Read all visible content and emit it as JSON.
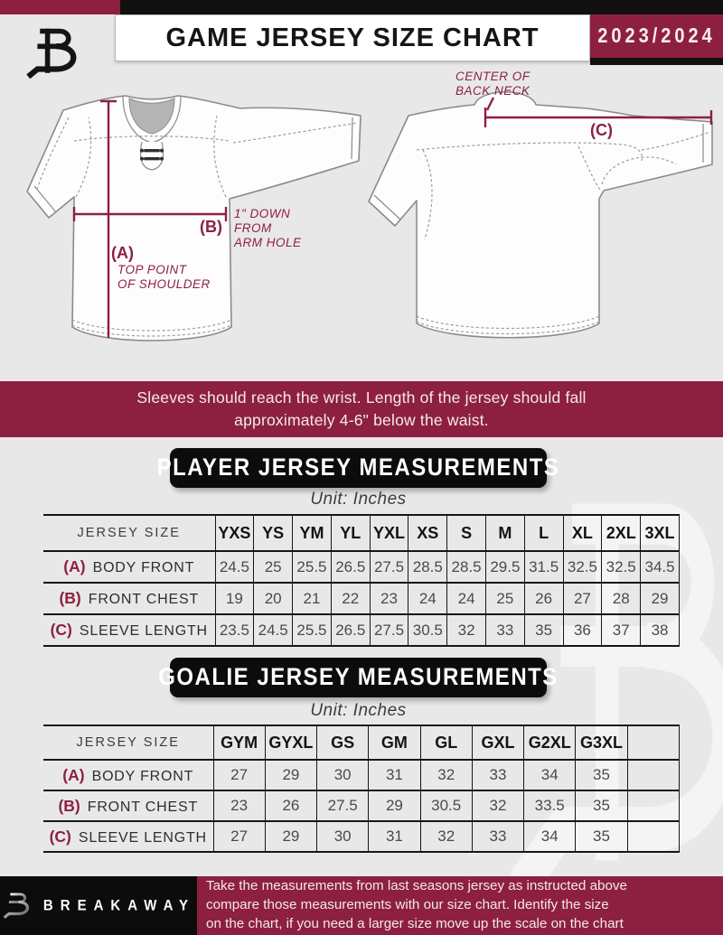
{
  "header": {
    "title": "GAME JERSEY SIZE CHART",
    "season": "2023/2024"
  },
  "icons": {
    "brand_logo": "breakaway-b-monogram"
  },
  "diagram": {
    "front": {
      "label_a": "(A)",
      "a_note_line1": "TOP POINT",
      "a_note_line2": "OF SHOULDER",
      "label_b": "(B)",
      "b_note_line1": "1\" DOWN",
      "b_note_line2": "FROM",
      "b_note_line3": "ARM HOLE"
    },
    "back": {
      "label_c": "(C)",
      "c_note_line1": "CENTER OF",
      "c_note_line2": "BACK NECK"
    }
  },
  "banner": {
    "line1": "Sleeves should reach the wrist. Length of the jersey should fall",
    "line2": "approximately 4-6\" below the waist."
  },
  "player_section": {
    "title": "PLAYER JERSEY MEASUREMENTS",
    "unit": "Unit: Inches",
    "table": {
      "corner_label": "JERSEY SIZE",
      "sizes": [
        "YXS",
        "YS",
        "YM",
        "YL",
        "YXL",
        "XS",
        "S",
        "M",
        "L",
        "XL",
        "2XL",
        "3XL"
      ],
      "rows": [
        {
          "key": "(A)",
          "label": "BODY FRONT",
          "values": [
            "24.5",
            "25",
            "25.5",
            "26.5",
            "27.5",
            "28.5",
            "28.5",
            "29.5",
            "31.5",
            "32.5",
            "32.5",
            "34.5"
          ]
        },
        {
          "key": "(B)",
          "label": "FRONT CHEST",
          "values": [
            "19",
            "20",
            "21",
            "22",
            "23",
            "24",
            "24",
            "25",
            "26",
            "27",
            "28",
            "29"
          ]
        },
        {
          "key": "(C)",
          "label": "SLEEVE LENGTH",
          "values": [
            "23.5",
            "24.5",
            "25.5",
            "26.5",
            "27.5",
            "30.5",
            "32",
            "33",
            "35",
            "36",
            "37",
            "38"
          ]
        }
      ]
    }
  },
  "goalie_section": {
    "title": "GOALIE JERSEY MEASUREMENTS",
    "unit": "Unit: Inches",
    "table": {
      "corner_label": "JERSEY SIZE",
      "sizes": [
        "GYM",
        "GYXL",
        "GS",
        "GM",
        "GL",
        "GXL",
        "G2XL",
        "G3XL",
        ""
      ],
      "rows": [
        {
          "key": "(A)",
          "label": "BODY FRONT",
          "values": [
            "27",
            "29",
            "30",
            "31",
            "32",
            "33",
            "34",
            "35",
            ""
          ]
        },
        {
          "key": "(B)",
          "label": "FRONT CHEST",
          "values": [
            "23",
            "26",
            "27.5",
            "29",
            "30.5",
            "32",
            "33.5",
            "35",
            ""
          ]
        },
        {
          "key": "(C)",
          "label": "SLEEVE LENGTH",
          "values": [
            "27",
            "29",
            "30",
            "31",
            "32",
            "33",
            "34",
            "35",
            ""
          ]
        }
      ]
    }
  },
  "footer": {
    "brand": "BREAKAWAY",
    "note_line1": "Take the measurements from last seasons jersey as instructed above",
    "note_line2": "compare those measurements  with our size chart. Identify the size",
    "note_line3": "on the chart, if you need a larger size move up the scale on the chart"
  },
  "colors": {
    "maroon": "#8d2040",
    "black": "#0c0c0c",
    "page_bg": "#e9e8e8"
  }
}
